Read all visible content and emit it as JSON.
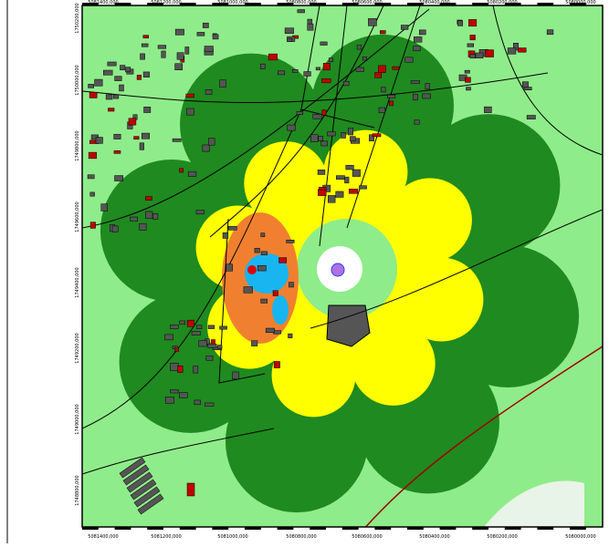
{
  "top_labels": [
    "5081400,000",
    "5081200,000",
    "5081000,000",
    "5080800,000",
    "5080600,000",
    "5080400,000",
    "5080200,000",
    "5080000,000"
  ],
  "bottom_labels": [
    "5081400,000",
    "5081200,000",
    "5081000,000",
    "5080800,000",
    "5080600,000",
    "5080400,000",
    "5080200,000",
    "5080000,000"
  ],
  "left_labels": [
    "1750200,000",
    "1750000,000",
    "1749800,000",
    "1749600,000",
    "1749400,000",
    "1749200,000",
    "1749000,000",
    "1748800,000"
  ]
}
